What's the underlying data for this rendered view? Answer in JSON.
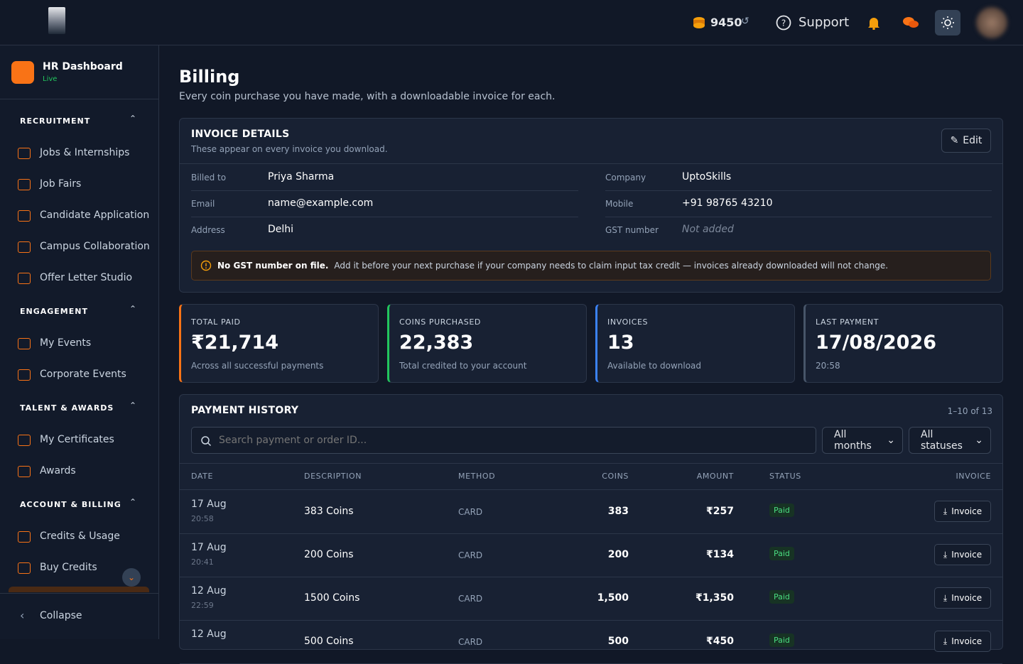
{
  "header": {
    "coins": "9450",
    "support": "Support"
  },
  "sidebar": {
    "brand": "HR Dashboard",
    "status": "Live",
    "sections": [
      {
        "title": "RECRUITMENT",
        "items": [
          "Jobs & Internships",
          "Job Fairs",
          "Candidate Application",
          "Campus Collaboration",
          "Offer Letter Studio"
        ]
      },
      {
        "title": "ENGAGEMENT",
        "items": [
          "My Events",
          "Corporate Events"
        ]
      },
      {
        "title": "TALENT & AWARDS",
        "items": [
          "My Certificates",
          "Awards"
        ]
      },
      {
        "title": "ACCOUNT & BILLING",
        "items": [
          "Credits & Usage",
          "Buy Credits"
        ]
      }
    ],
    "collapse": "Collapse"
  },
  "page": {
    "title": "Billing",
    "subtitle": "Every coin purchase you have made, with a downloadable invoice for each."
  },
  "invoice": {
    "title": "INVOICE DETAILS",
    "subtitle": "These appear on every invoice you download.",
    "edit": "Edit",
    "fields": [
      {
        "label": "Billed to",
        "value": "Priya Sharma"
      },
      {
        "label": "Company",
        "value": "UptoSkills"
      },
      {
        "label": "Email",
        "value": "name@example.com"
      },
      {
        "label": "Mobile",
        "value": "+91 98765 43210"
      },
      {
        "label": "Address",
        "value": "Delhi"
      },
      {
        "label": "GST number",
        "value": "Not added"
      }
    ],
    "warning": {
      "strong": "No GST number on file.",
      "text": "Add it before your next purchase if your company needs to claim input tax credit — invoices already downloaded will not change."
    }
  },
  "stats": [
    {
      "label": "TOTAL PAID",
      "value": "₹21,714",
      "note": "Across all successful payments",
      "color": "#f97316"
    },
    {
      "label": "COINS PURCHASED",
      "value": "22,383",
      "note": "Total credited to your account",
      "color": "#22c55e"
    },
    {
      "label": "INVOICES",
      "value": "13",
      "note": "Available to download",
      "color": "#3b82f6"
    },
    {
      "label": "LAST PAYMENT",
      "value": "17/08/2026",
      "note": "20:58",
      "color": "#475569"
    }
  ],
  "history": {
    "title": "PAYMENT HISTORY",
    "count": "1–10 of 13",
    "search": "Search payment or order ID...",
    "filters": [
      "All months",
      "All statuses"
    ],
    "columns": [
      "DATE",
      "DESCRIPTION",
      "METHOD",
      "COINS",
      "AMOUNT",
      "STATUS",
      "INVOICE"
    ],
    "rows": [
      {
        "date": "17 Aug",
        "time": "20:58",
        "description": "383 Coins",
        "method": "CARD",
        "coins": "383",
        "amount": "₹257",
        "status": "Paid",
        "action": "Invoice"
      },
      {
        "date": "17 Aug",
        "time": "20:41",
        "description": "200 Coins",
        "method": "CARD",
        "coins": "200",
        "amount": "₹134",
        "status": "Paid",
        "action": "Invoice"
      },
      {
        "date": "12 Aug",
        "time": "22:59",
        "description": "1500 Coins",
        "method": "CARD",
        "coins": "1,500",
        "amount": "₹1,350",
        "status": "Paid",
        "action": "Invoice"
      },
      {
        "date": "12 Aug",
        "description": "500 Coins",
        "method": "CARD",
        "coins": "500",
        "amount": "₹450",
        "status": "Paid",
        "action": "Invoice"
      }
    ]
  }
}
